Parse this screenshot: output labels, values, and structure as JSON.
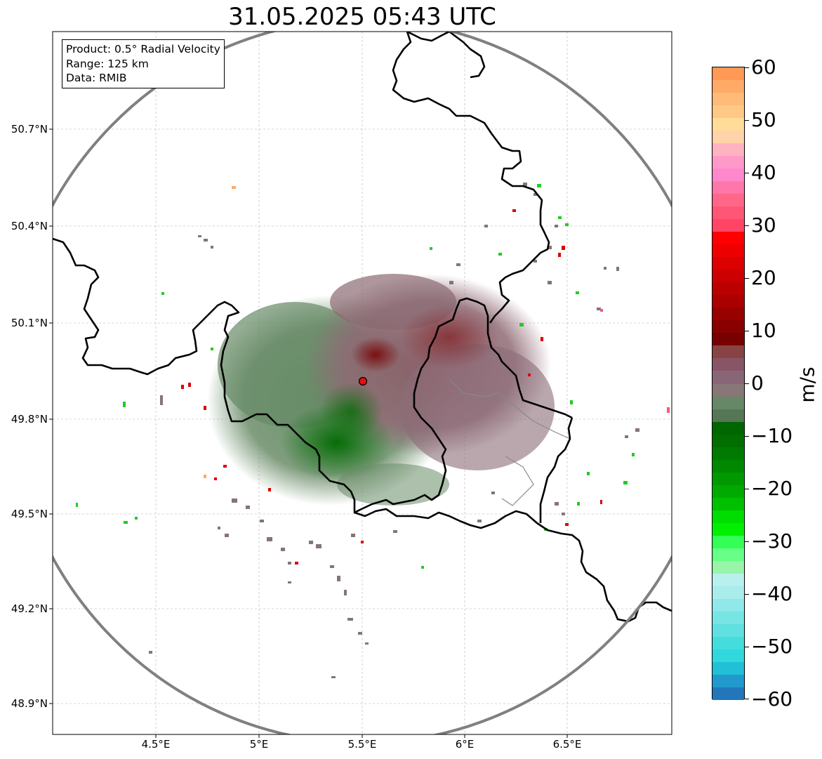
{
  "title": "31.05.2025 05:43 UTC",
  "info": {
    "product": "Product: 0.5° Radial Velocity",
    "range": "Range: 125 km",
    "data": "Data: RMIB"
  },
  "axes": {
    "lat_ticks": [
      "50.7°N",
      "50.4°N",
      "50.1°N",
      "49.8°N",
      "49.5°N",
      "49.2°N",
      "48.9°N"
    ],
    "lon_ticks": [
      "4.5°E",
      "5°E",
      "5.5°E",
      "6°E",
      "6.5°E"
    ]
  },
  "colorbar": {
    "label": "m/s",
    "ticks": [
      "60",
      "50",
      "40",
      "30",
      "20",
      "10",
      "0",
      "−10",
      "−20",
      "−30",
      "−40",
      "−50",
      "−60"
    ],
    "colors": [
      "#ff9955",
      "#ffaa66",
      "#ffbb77",
      "#ffc885",
      "#ffdd99",
      "#ffd4a8",
      "#ffb3c0",
      "#ff9ac8",
      "#ff88cc",
      "#ff77aa",
      "#ff6688",
      "#ff5577",
      "#ff4466",
      "#ff0000",
      "#ee0000",
      "#dd0000",
      "#cc0000",
      "#bb0000",
      "#aa0000",
      "#990000",
      "#880000",
      "#770000",
      "#884444",
      "#885566",
      "#886677",
      "#887777",
      "#668866",
      "#557755",
      "#006600",
      "#006f00",
      "#007a00",
      "#008800",
      "#009900",
      "#00aa00",
      "#00c000",
      "#00dd00",
      "#00f000",
      "#33ff55",
      "#66ff88",
      "#99f5aa",
      "#b8f0ee",
      "#a8ecec",
      "#90e8e8",
      "#78e4e4",
      "#60e0e0",
      "#44dcdc",
      "#30d8dc",
      "#22c0d8",
      "#2299cc",
      "#2277bb"
    ]
  },
  "radar": {
    "site_lat": 49.914,
    "site_lon": 5.506,
    "range_km": 125
  }
}
